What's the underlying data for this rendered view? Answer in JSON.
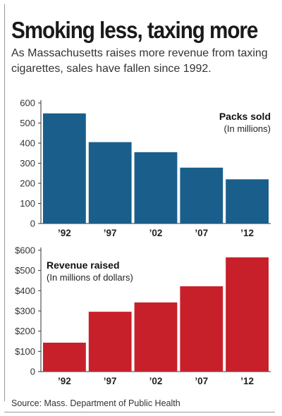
{
  "header": {
    "title": "Smoking less, taxing more",
    "subtitle": "As Massachusetts raises more revenue from taxing cigarettes, sales have fallen since 1992."
  },
  "source": "Source: Mass. Department of Public Health",
  "colors": {
    "packs": "#1a5e8c",
    "revenue": "#c8202a",
    "axis": "#333333",
    "grid": "#dddddd"
  },
  "chart_data": [
    {
      "type": "bar",
      "categories": [
        "’92",
        "’97",
        "’02",
        "’07",
        "’12"
      ],
      "values": [
        548,
        405,
        355,
        278,
        220
      ],
      "label_title": "Packs sold",
      "label_subtitle": "(In millions)",
      "ylim": [
        0,
        600
      ],
      "yticks": [
        0,
        100,
        200,
        300,
        400,
        500,
        600
      ],
      "ytick_labels": [
        "0",
        "100",
        "200",
        "300",
        "400",
        "500",
        "600"
      ],
      "legend": "top-right",
      "grid": false
    },
    {
      "type": "bar",
      "categories": [
        "’92",
        "’97",
        "’02",
        "’07",
        "’12"
      ],
      "values": [
        143,
        296,
        342,
        422,
        565
      ],
      "label_title": "Revenue raised",
      "label_subtitle": "(In millions of dollars)",
      "ylim": [
        0,
        600
      ],
      "yticks": [
        0,
        100,
        200,
        300,
        400,
        500,
        600
      ],
      "ytick_labels": [
        "0",
        "$100",
        "$200",
        "$300",
        "$400",
        "$500",
        "$600"
      ],
      "legend": "top-left",
      "grid": false
    }
  ]
}
